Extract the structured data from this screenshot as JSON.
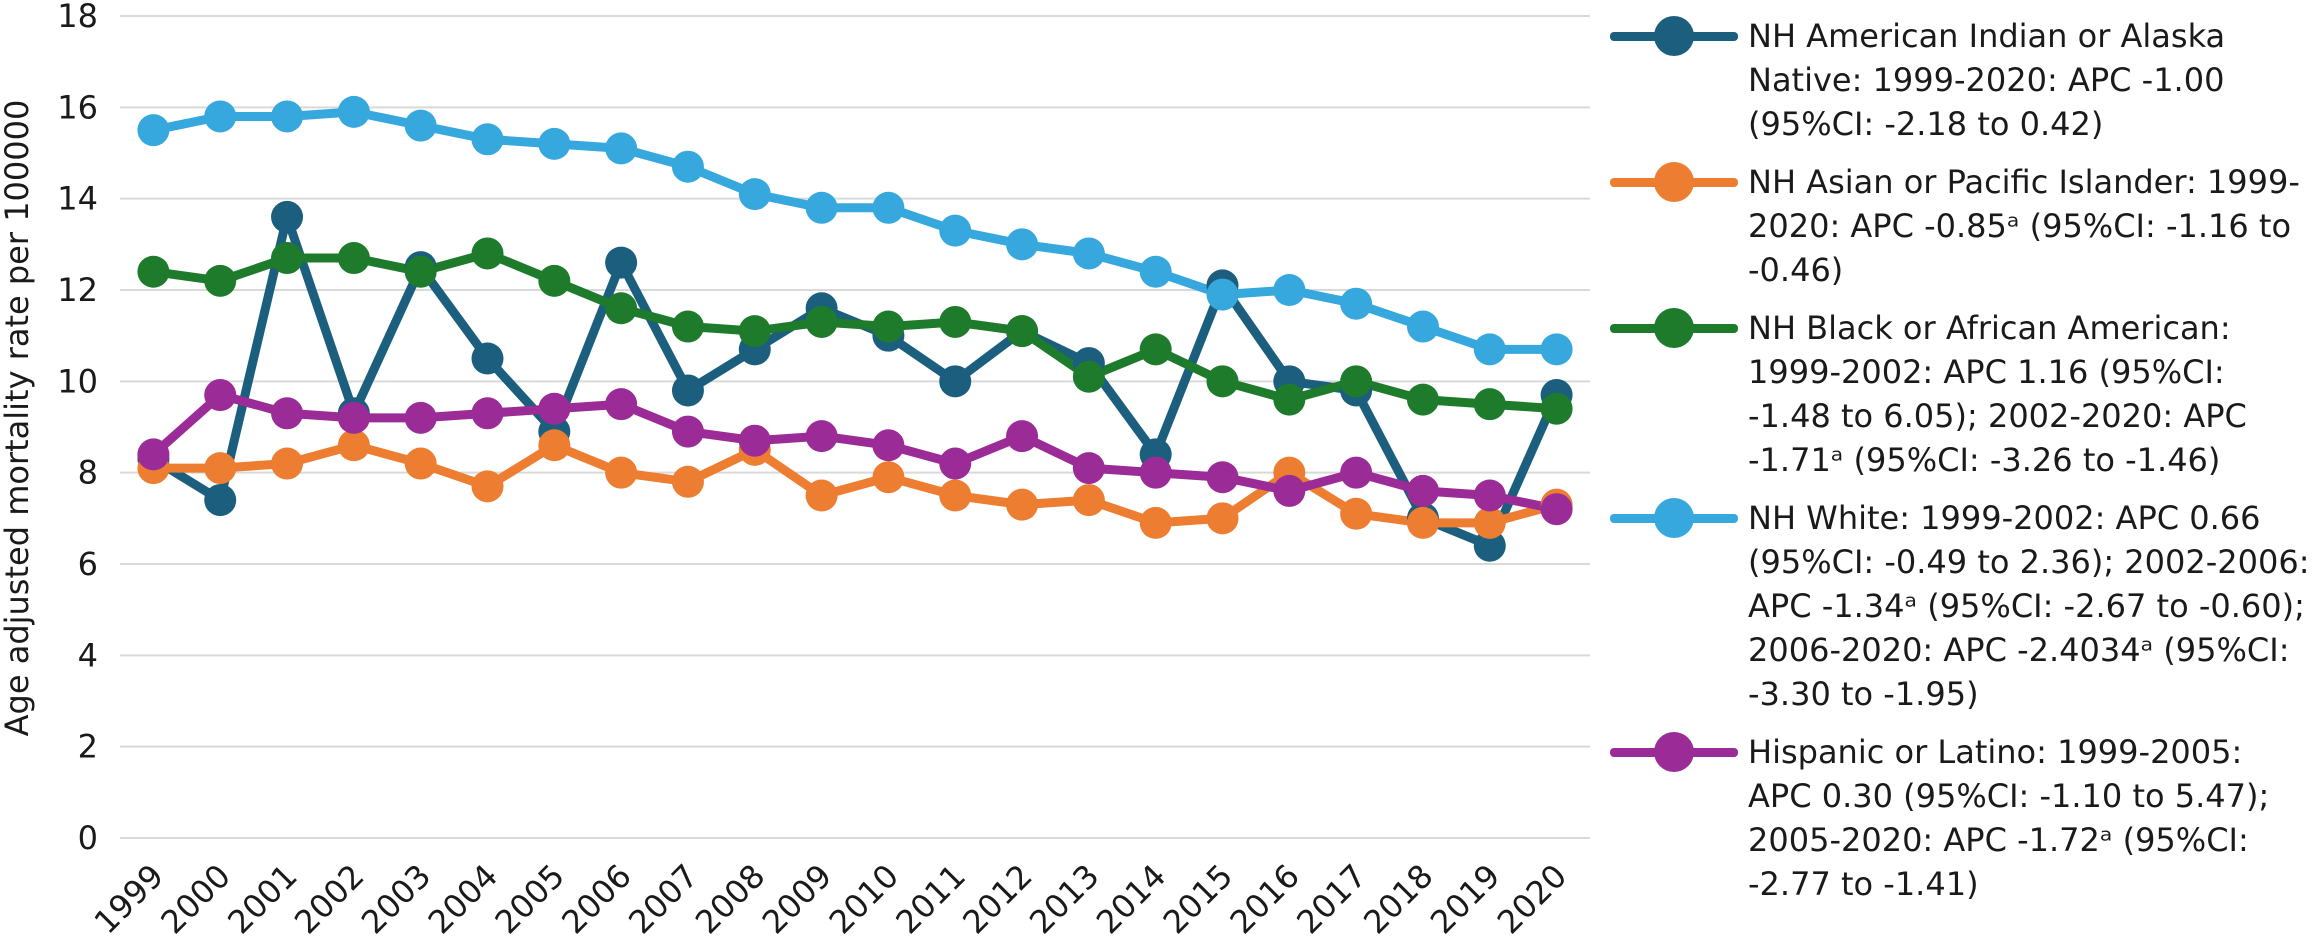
{
  "chart_data": {
    "type": "line",
    "title": "",
    "xlabel": "",
    "ylabel": "Age adjusted mortality rate per 100000",
    "ylim": [
      0,
      18
    ],
    "yticks": [
      0,
      2,
      4,
      6,
      8,
      10,
      12,
      14,
      16,
      18
    ],
    "grid": "horizontal",
    "legend_position": "right",
    "categories": [
      "1999",
      "2000",
      "2001",
      "2002",
      "2003",
      "2004",
      "2005",
      "2006",
      "2007",
      "2008",
      "2009",
      "2010",
      "2011",
      "2012",
      "2013",
      "2014",
      "2015",
      "2016",
      "2017",
      "2018",
      "2019",
      "2020"
    ],
    "series": [
      {
        "color": "#1b5e7e",
        "legend_text": "NH American Indian or Alaska Native: 1999-2020: APC -1.00 (95%CI: -2.18 to 0.42)",
        "values": [
          8.3,
          7.4,
          13.6,
          9.3,
          12.5,
          10.5,
          8.9,
          12.6,
          9.8,
          10.7,
          11.6,
          11.0,
          10.0,
          11.1,
          10.4,
          8.4,
          12.1,
          10.0,
          9.8,
          7.0,
          6.4,
          9.7
        ]
      },
      {
        "color": "#ed7d31",
        "legend_text": "NH Asian or Pacific Islander: 1999-2020: APC -0.85ᵃ (95%CI: -1.16 to -0.46)",
        "values": [
          8.1,
          8.1,
          8.2,
          8.6,
          8.2,
          7.7,
          8.6,
          8.0,
          7.8,
          8.5,
          7.5,
          7.9,
          7.5,
          7.3,
          7.4,
          6.9,
          7.0,
          8.0,
          7.1,
          6.9,
          6.9,
          7.3
        ]
      },
      {
        "color": "#1e7b2b",
        "legend_text": "NH Black or African American: 1999-2002: APC 1.16 (95%CI: -1.48 to 6.05); 2002-2020: APC -1.71ᵃ (95%CI: -3.26 to -1.46)",
        "values": [
          12.4,
          12.2,
          12.7,
          12.7,
          12.4,
          12.8,
          12.2,
          11.6,
          11.2,
          11.1,
          11.3,
          11.2,
          11.3,
          11.1,
          10.1,
          10.7,
          10.0,
          9.6,
          10.0,
          9.6,
          9.5,
          9.4
        ]
      },
      {
        "color": "#36a8de",
        "legend_text": "NH White: 1999-2002: APC 0.66 (95%CI: -0.49 to 2.36); 2002-2006: APC -1.34ᵃ (95%CI: -2.67 to -0.60); 2006-2020: APC -2.4034ᵃ (95%CI: -3.30 to -1.95)",
        "values": [
          15.5,
          15.8,
          15.8,
          15.9,
          15.6,
          15.3,
          15.2,
          15.1,
          14.7,
          14.1,
          13.8,
          13.8,
          13.3,
          13.0,
          12.8,
          12.4,
          11.9,
          12.0,
          11.7,
          11.2,
          10.7,
          10.7
        ]
      },
      {
        "color": "#9b2b96",
        "legend_text": "Hispanic or Latino: 1999-2005: APC 0.30 (95%CI: -1.10 to 5.47); 2005-2020: APC -1.72ᵃ (95%CI: -2.77 to -1.41)",
        "values": [
          8.4,
          9.7,
          9.3,
          9.2,
          9.2,
          9.3,
          9.4,
          9.5,
          8.9,
          8.7,
          8.8,
          8.6,
          8.2,
          8.8,
          8.1,
          8.0,
          7.9,
          7.6,
          8.0,
          7.6,
          7.5,
          7.2
        ]
      }
    ]
  }
}
